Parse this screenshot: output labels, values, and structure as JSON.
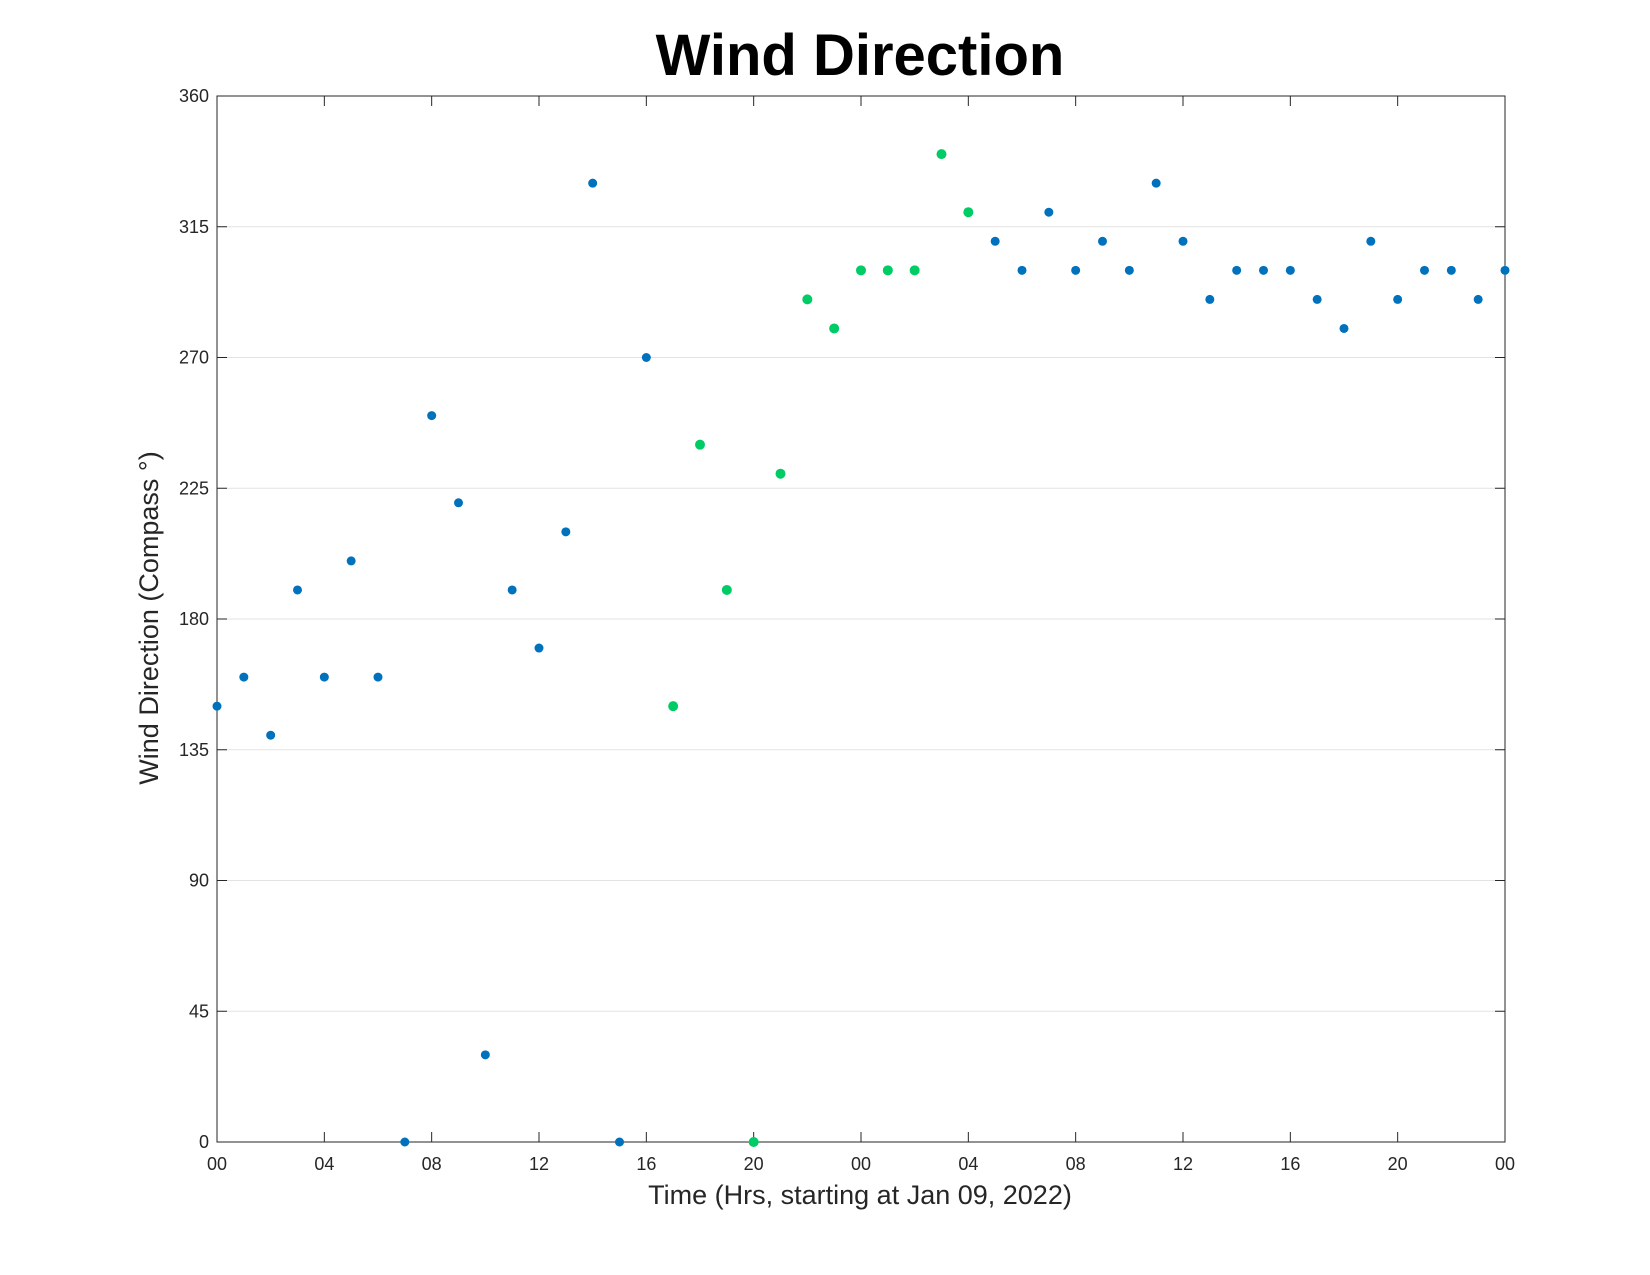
{
  "chart_data": {
    "type": "scatter",
    "title": "Wind Direction",
    "xlabel": "Time (Hrs, starting at Jan 09, 2022)",
    "ylabel": "Wind Direction (Compass °)",
    "ylim": [
      0,
      360
    ],
    "xlim": [
      "2022-01-09 00:00",
      "2022-01-11 00:00"
    ],
    "y_ticks": [
      0,
      45,
      90,
      135,
      180,
      225,
      270,
      315,
      360
    ],
    "x_ticks": [
      {
        "time": "2022-01-09 00:00",
        "label": "00"
      },
      {
        "time": "2022-01-09 04:00",
        "label": "04"
      },
      {
        "time": "2022-01-09 08:00",
        "label": "08"
      },
      {
        "time": "2022-01-09 12:00",
        "label": "12"
      },
      {
        "time": "2022-01-09 16:00",
        "label": "16"
      },
      {
        "time": "2022-01-09 20:00",
        "label": "20"
      },
      {
        "time": "2022-01-10 00:00",
        "label": "00"
      },
      {
        "time": "2022-01-10 04:00",
        "label": "04"
      },
      {
        "time": "2022-01-10 08:00",
        "label": "08"
      },
      {
        "time": "2022-01-10 12:00",
        "label": "12"
      },
      {
        "time": "2022-01-10 16:00",
        "label": "16"
      },
      {
        "time": "2022-01-10 20:00",
        "label": "20"
      },
      {
        "time": "2022-01-11 00:00",
        "label": "00"
      }
    ],
    "grid": "horizontal",
    "series": [
      {
        "color": "#0072bd",
        "points": [
          {
            "x": "2022-01-09 00:00",
            "y": 150
          },
          {
            "x": "2022-01-09 01:00",
            "y": 160
          },
          {
            "x": "2022-01-09 02:00",
            "y": 140
          },
          {
            "x": "2022-01-09 03:00",
            "y": 190
          },
          {
            "x": "2022-01-09 04:00",
            "y": 160
          },
          {
            "x": "2022-01-09 05:00",
            "y": 200
          },
          {
            "x": "2022-01-09 06:00",
            "y": 160
          },
          {
            "x": "2022-01-09 07:00",
            "y": 0
          },
          {
            "x": "2022-01-09 08:00",
            "y": 250
          },
          {
            "x": "2022-01-09 09:00",
            "y": 220
          },
          {
            "x": "2022-01-09 10:00",
            "y": 30
          },
          {
            "x": "2022-01-09 11:00",
            "y": 190
          },
          {
            "x": "2022-01-09 12:00",
            "y": 170
          },
          {
            "x": "2022-01-09 13:00",
            "y": 210
          },
          {
            "x": "2022-01-09 14:00",
            "y": 330
          },
          {
            "x": "2022-01-09 15:00",
            "y": 0
          },
          {
            "x": "2022-01-09 16:00",
            "y": 270
          },
          {
            "x": "2022-01-10 05:00",
            "y": 310
          },
          {
            "x": "2022-01-10 06:00",
            "y": 300
          },
          {
            "x": "2022-01-10 07:00",
            "y": 320
          },
          {
            "x": "2022-01-10 08:00",
            "y": 300
          },
          {
            "x": "2022-01-10 09:00",
            "y": 310
          },
          {
            "x": "2022-01-10 10:00",
            "y": 300
          },
          {
            "x": "2022-01-10 11:00",
            "y": 330
          },
          {
            "x": "2022-01-10 12:00",
            "y": 310
          },
          {
            "x": "2022-01-10 13:00",
            "y": 290
          },
          {
            "x": "2022-01-10 14:00",
            "y": 300
          },
          {
            "x": "2022-01-10 15:00",
            "y": 300
          },
          {
            "x": "2022-01-10 16:00",
            "y": 300
          },
          {
            "x": "2022-01-10 17:00",
            "y": 290
          },
          {
            "x": "2022-01-10 18:00",
            "y": 280
          },
          {
            "x": "2022-01-10 19:00",
            "y": 310
          },
          {
            "x": "2022-01-10 20:00",
            "y": 290
          },
          {
            "x": "2022-01-10 21:00",
            "y": 300
          },
          {
            "x": "2022-01-10 22:00",
            "y": 300
          },
          {
            "x": "2022-01-10 23:00",
            "y": 290
          },
          {
            "x": "2022-01-11 00:00",
            "y": 300
          }
        ]
      },
      {
        "color": "#00cc66",
        "points": [
          {
            "x": "2022-01-09 17:00",
            "y": 150
          },
          {
            "x": "2022-01-09 18:00",
            "y": 240
          },
          {
            "x": "2022-01-09 19:00",
            "y": 190
          },
          {
            "x": "2022-01-09 20:00",
            "y": 0
          },
          {
            "x": "2022-01-09 21:00",
            "y": 230
          },
          {
            "x": "2022-01-09 22:00",
            "y": 290
          },
          {
            "x": "2022-01-09 23:00",
            "y": 280
          },
          {
            "x": "2022-01-10 00:00",
            "y": 300
          },
          {
            "x": "2022-01-10 01:00",
            "y": 300
          },
          {
            "x": "2022-01-10 02:00",
            "y": 300
          },
          {
            "x": "2022-01-10 03:00",
            "y": 340
          },
          {
            "x": "2022-01-10 04:00",
            "y": 320
          }
        ]
      }
    ]
  }
}
